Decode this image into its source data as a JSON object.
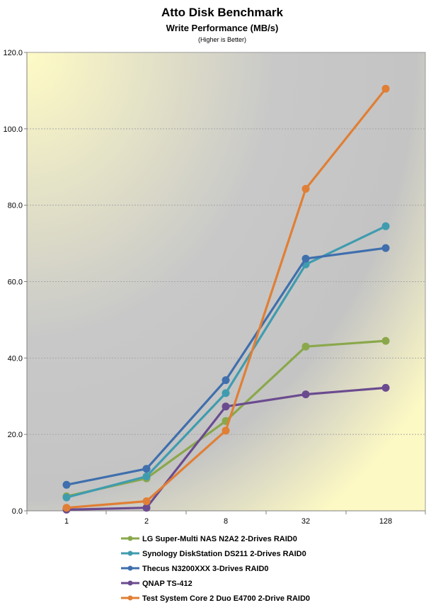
{
  "chart_data": {
    "type": "line",
    "title": "Atto Disk Benchmark",
    "subtitle": "Write Performance (MB/s)",
    "note": "(Higher is Better)",
    "xlabel": "",
    "ylabel": "",
    "categories": [
      "1",
      "2",
      "8",
      "32",
      "128"
    ],
    "ylim": [
      0,
      120
    ],
    "yticks": [
      "0.0",
      "20.0",
      "40.0",
      "60.0",
      "80.0",
      "100.0",
      "120.0"
    ],
    "ytick_values": [
      0,
      20,
      40,
      60,
      80,
      100,
      120
    ],
    "grid": true,
    "legend_position": "bottom",
    "series": [
      {
        "name": "LG Super-Multi NAS N2A2 2-Drives RAID0",
        "color": "#8aa84b",
        "values": [
          3.8,
          8.5,
          23.5,
          43.0,
          44.5
        ]
      },
      {
        "name": "Synology DiskStation DS211 2-Drives RAID0",
        "color": "#3f9caf",
        "values": [
          3.5,
          9.0,
          30.8,
          64.5,
          74.5
        ]
      },
      {
        "name": "Thecus N3200XXX 3-Drives RAID0",
        "color": "#3f6fad",
        "values": [
          6.8,
          11.0,
          34.2,
          66.0,
          68.8
        ]
      },
      {
        "name": "QNAP TS-412",
        "color": "#6b4b8f",
        "values": [
          0.3,
          0.8,
          27.3,
          30.5,
          32.2
        ]
      },
      {
        "name": "Test System Core 2 Duo E4700 2-Drive RAID0",
        "color": "#e07f35",
        "values": [
          0.8,
          2.5,
          21.0,
          84.3,
          110.5
        ]
      }
    ]
  }
}
